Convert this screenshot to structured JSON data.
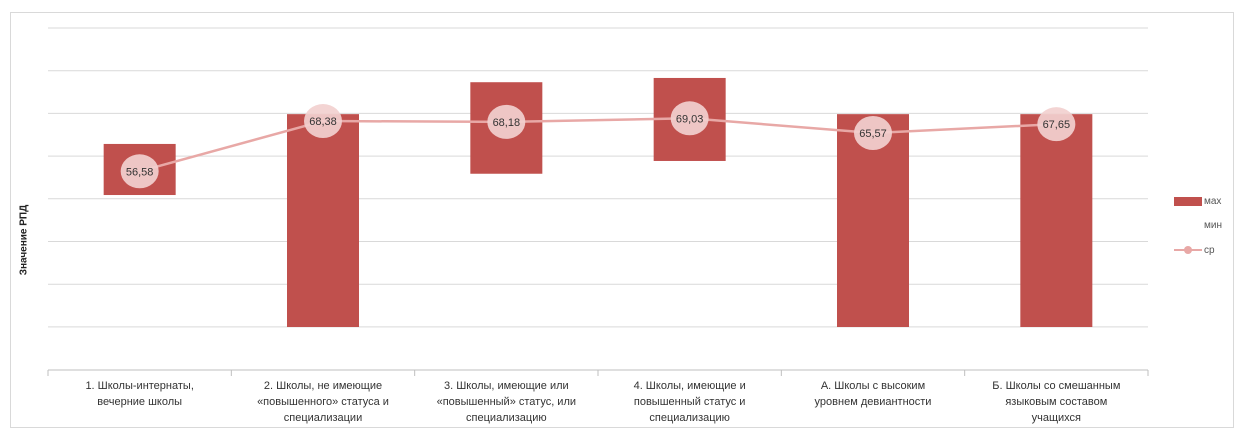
{
  "chart_data": {
    "type": "bar",
    "title": "",
    "ylabel": "Значение РПД",
    "xlabel": "",
    "ylim": [
      20,
      90
    ],
    "y_ticks_printed": false,
    "grid": true,
    "legend_position": "right",
    "categories": [
      [
        "1. Школы-интернаты,",
        "вечерние школы"
      ],
      [
        "2. Школы, не имеющие",
        "«повышенного» статуса и",
        "специализации"
      ],
      [
        "3. Школы, имеющие или",
        "«повышенный» статус, или",
        "специализацию"
      ],
      [
        "4. Школы, имеющие и",
        "повышенный статус и",
        "специализацию"
      ],
      [
        "А. Школы с высоким",
        "уровнем девиантности"
      ],
      [
        "Б. Школы со смешанным",
        "языковым составом",
        "учащихся"
      ]
    ],
    "series": [
      {
        "name": "мах",
        "kind": "floating-bar-top",
        "values": [
          63,
          70,
          77.5,
          78.5,
          70,
          70
        ]
      },
      {
        "name": "мин",
        "kind": "floating-bar-bottom",
        "values": [
          51,
          20,
          56,
          59,
          20,
          20
        ]
      },
      {
        "name": "ср",
        "kind": "line",
        "values": [
          56.58,
          68.38,
          68.18,
          69.03,
          65.57,
          67.65
        ]
      }
    ],
    "data_labels": [
      "56,58",
      "68,38",
      "68,18",
      "69,03",
      "65,57",
      "67,65"
    ],
    "colors": {
      "bar": "#c0504d",
      "line": "#e8a8a6",
      "label_bg": "#f2d0cf",
      "grid": "#d9d9d9"
    }
  }
}
